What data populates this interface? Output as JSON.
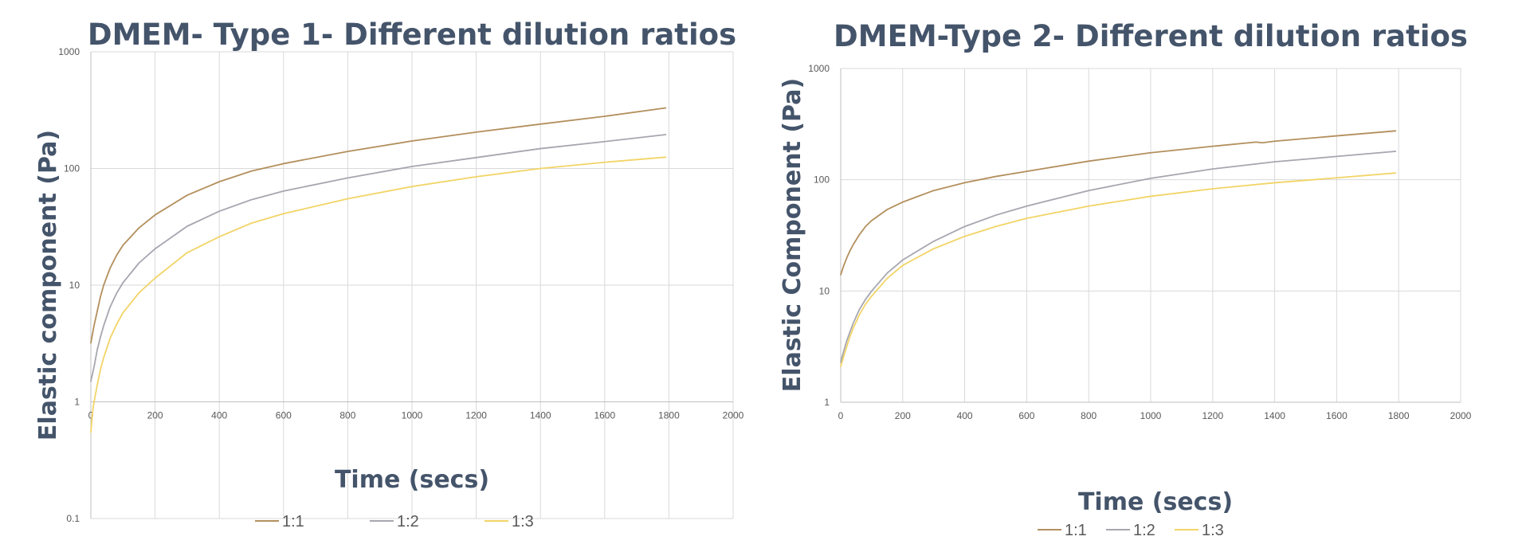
{
  "chart_data": [
    {
      "type": "line",
      "title": "DMEM- Type 1- Different dilution ratios",
      "xlabel": "Time (secs)",
      "ylabel": "Elastic component (Pa)",
      "y_scale": "log",
      "xlim": [
        0,
        2000
      ],
      "ylim": [
        0.1,
        1000
      ],
      "x_ticks": [
        "0",
        "200",
        "400",
        "600",
        "800",
        "1000",
        "1200",
        "1400",
        "1600",
        "1800",
        "2000"
      ],
      "y_ticks": [
        "0.1",
        "1",
        "10",
        "100",
        "1000"
      ],
      "grid": true,
      "legend_position": "bottom",
      "series": [
        {
          "name": "1:1",
          "color": "#b38f5d",
          "x": [
            0,
            10,
            20,
            30,
            40,
            60,
            80,
            100,
            150,
            200,
            300,
            400,
            500,
            600,
            800,
            1000,
            1200,
            1400,
            1600,
            1790
          ],
          "y": [
            3.2,
            4.5,
            6,
            8,
            10,
            14,
            18,
            22,
            31,
            40,
            59,
            77,
            95,
            110,
            140,
            172,
            205,
            240,
            280,
            330
          ]
        },
        {
          "name": "1:2",
          "color": "#a6a6b0",
          "x": [
            0,
            10,
            20,
            30,
            40,
            60,
            80,
            100,
            150,
            200,
            300,
            400,
            500,
            600,
            800,
            1000,
            1200,
            1400,
            1600,
            1790
          ],
          "y": [
            1.5,
            2,
            2.8,
            3.6,
            4.5,
            6.5,
            8.5,
            10.5,
            15.5,
            20.5,
            32,
            43,
            54,
            64,
            83,
            104,
            124,
            148,
            170,
            195
          ]
        },
        {
          "name": "1:3",
          "color": "#f2d467",
          "x": [
            0,
            5,
            10,
            20,
            30,
            40,
            60,
            80,
            100,
            150,
            200,
            300,
            400,
            500,
            600,
            800,
            1000,
            1200,
            1400,
            1600,
            1790
          ],
          "y": [
            0.55,
            0.8,
            1,
            1.4,
            1.9,
            2.4,
            3.5,
            4.6,
            5.8,
            8.6,
            11.5,
            19,
            26,
            34,
            41,
            55,
            70,
            85,
            100,
            113,
            125
          ]
        }
      ]
    },
    {
      "type": "line",
      "title": "DMEM-Type 2- Different dilution ratios",
      "xlabel": "Time (secs)",
      "ylabel": "Elastic Component (Pa)",
      "y_scale": "log",
      "xlim": [
        0,
        2000
      ],
      "ylim": [
        1,
        1000
      ],
      "x_ticks": [
        "0",
        "200",
        "400",
        "600",
        "800",
        "1000",
        "1200",
        "1400",
        "1600",
        "1800",
        "2000"
      ],
      "y_ticks": [
        "1",
        "10",
        "100",
        "1000"
      ],
      "grid": true,
      "legend_position": "bottom",
      "series": [
        {
          "name": "1:1",
          "color": "#b38f5d",
          "x": [
            0,
            10,
            20,
            30,
            40,
            60,
            80,
            100,
            150,
            200,
            300,
            400,
            500,
            600,
            800,
            1000,
            1200,
            1340,
            1360,
            1400,
            1600,
            1790
          ],
          "y": [
            14,
            17,
            20,
            23,
            26,
            32,
            38,
            43,
            54,
            63,
            80,
            94,
            107,
            119,
            147,
            175,
            200,
            218,
            215,
            222,
            248,
            275
          ]
        },
        {
          "name": "1:2",
          "color": "#a6a6b0",
          "x": [
            0,
            10,
            20,
            30,
            40,
            60,
            80,
            100,
            150,
            200,
            300,
            400,
            500,
            600,
            800,
            1000,
            1200,
            1400,
            1600,
            1790
          ],
          "y": [
            2.3,
            2.9,
            3.6,
            4.3,
            5.1,
            6.8,
            8.4,
            10,
            14.5,
            19,
            28,
            38,
            48,
            58,
            80,
            103,
            125,
            145,
            162,
            180
          ]
        },
        {
          "name": "1:3",
          "color": "#f2d467",
          "x": [
            0,
            10,
            20,
            30,
            40,
            60,
            80,
            100,
            150,
            200,
            300,
            400,
            500,
            600,
            800,
            1000,
            1200,
            1400,
            1600,
            1790
          ],
          "y": [
            2.1,
            2.6,
            3.2,
            3.9,
            4.6,
            6.1,
            7.6,
            9,
            13,
            17,
            24,
            31,
            38,
            45,
            58,
            71,
            83,
            94,
            104,
            115
          ]
        }
      ]
    }
  ]
}
